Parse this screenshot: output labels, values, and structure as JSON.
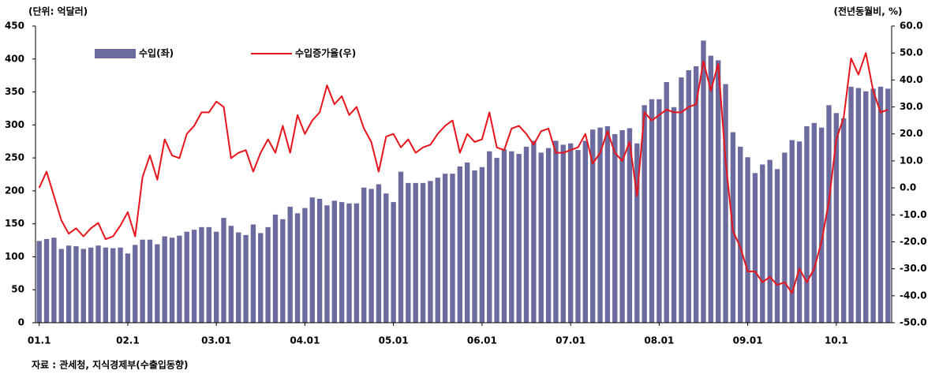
{
  "chart_data": {
    "type": "bar_line",
    "y_axis_label": "(단위: 억달러)",
    "y2_axis_label": "(전년동월비, %)",
    "source": "자료 : 관세청, 지식경제부(수출입동향)",
    "categories": [
      "01.1",
      null,
      null,
      null,
      null,
      null,
      null,
      null,
      null,
      null,
      null,
      null,
      "02.1",
      null,
      null,
      null,
      null,
      null,
      null,
      null,
      null,
      null,
      null,
      null,
      "03.01",
      null,
      null,
      null,
      null,
      null,
      null,
      null,
      null,
      null,
      null,
      null,
      "04.01",
      null,
      null,
      null,
      null,
      null,
      null,
      null,
      null,
      null,
      null,
      null,
      "05.01",
      null,
      null,
      null,
      null,
      null,
      null,
      null,
      null,
      null,
      null,
      null,
      "06.01",
      null,
      null,
      null,
      null,
      null,
      null,
      null,
      null,
      null,
      null,
      null,
      "07.01",
      null,
      null,
      null,
      null,
      null,
      null,
      null,
      null,
      null,
      null,
      null,
      "08.01",
      null,
      null,
      null,
      null,
      null,
      null,
      null,
      null,
      null,
      null,
      null,
      "09.01",
      null,
      null,
      null,
      null,
      null,
      null,
      null,
      null,
      null,
      null,
      null,
      "10.1",
      null,
      null,
      null,
      null,
      null,
      null,
      null
    ],
    "series": [
      {
        "name": "수입(좌)",
        "type": "bar",
        "color": "#6b6b9f",
        "values": [
          124,
          127,
          129,
          112,
          117,
          116,
          112,
          114,
          117,
          114,
          113,
          114,
          105,
          118,
          126,
          126,
          119,
          131,
          129,
          132,
          138,
          141,
          145,
          145,
          138,
          159,
          147,
          137,
          133,
          149,
          136,
          145,
          164,
          157,
          176,
          166,
          174,
          190,
          188,
          178,
          185,
          183,
          181,
          181,
          205,
          203,
          210,
          196,
          183,
          229,
          212,
          212,
          212,
          215,
          220,
          226,
          226,
          237,
          243,
          231,
          236,
          260,
          250,
          263,
          260,
          256,
          267,
          276,
          258,
          265,
          276,
          270,
          272,
          262,
          276,
          293,
          296,
          298,
          286,
          292,
          295,
          272,
          330,
          339,
          339,
          365,
          327,
          372,
          383,
          389,
          428,
          405,
          398,
          362,
          289,
          267,
          251,
          227,
          240,
          247,
          233,
          258,
          277,
          275,
          298,
          303,
          296,
          330,
          318,
          310,
          358,
          356,
          351,
          355,
          358,
          355
        ]
      },
      {
        "name": "수입증가율(우)",
        "type": "line",
        "axis": "y2",
        "color": "#e8141b",
        "values": [
          0,
          6,
          -3,
          -12,
          -17,
          -15,
          -18,
          -15,
          -13,
          -19,
          -18,
          -14,
          -9,
          -18,
          4,
          12,
          3,
          18,
          12,
          11,
          20,
          23,
          28,
          28,
          32,
          30,
          11,
          13,
          14,
          6,
          13,
          18,
          13,
          23,
          13,
          27,
          20,
          25,
          28,
          38,
          31,
          34,
          27,
          30,
          22,
          17,
          6,
          19,
          20,
          15,
          18,
          13,
          15,
          16,
          20,
          23,
          25,
          13,
          20,
          17,
          18,
          28,
          15,
          14,
          22,
          23,
          20,
          16,
          21,
          22,
          13,
          13,
          14,
          15,
          20,
          9,
          13,
          21,
          13,
          10,
          17,
          -3,
          28,
          25,
          27,
          29,
          28,
          28,
          30,
          31,
          47,
          36,
          46,
          10,
          -16,
          -22,
          -31,
          -31,
          -35,
          -33,
          -36,
          -35,
          -39,
          -30,
          -35,
          -30,
          -20,
          -5,
          18,
          26,
          48,
          42,
          50,
          36,
          28,
          29
        ]
      }
    ],
    "ylim": [
      0,
      450
    ],
    "yticks": [
      0,
      50,
      100,
      150,
      200,
      250,
      300,
      350,
      400,
      450
    ],
    "y2lim": [
      -50,
      60
    ],
    "y2ticks": [
      {
        "value": 60,
        "label": "60.0"
      },
      {
        "value": 50,
        "label": "50.0"
      },
      {
        "value": 40,
        "label": "40.0"
      },
      {
        "value": 30,
        "label": "30.0"
      },
      {
        "value": 20,
        "label": "20.0"
      },
      {
        "value": 10,
        "label": "10.0"
      },
      {
        "value": 0,
        "label": "0.0"
      },
      {
        "value": -10,
        "label": "-10.0"
      },
      {
        "value": -20,
        "label": "-20.0"
      },
      {
        "value": -30,
        "label": "-30.0"
      },
      {
        "value": -40,
        "label": "-40.0"
      },
      {
        "value": -50,
        "label": "-50.0"
      }
    ]
  }
}
